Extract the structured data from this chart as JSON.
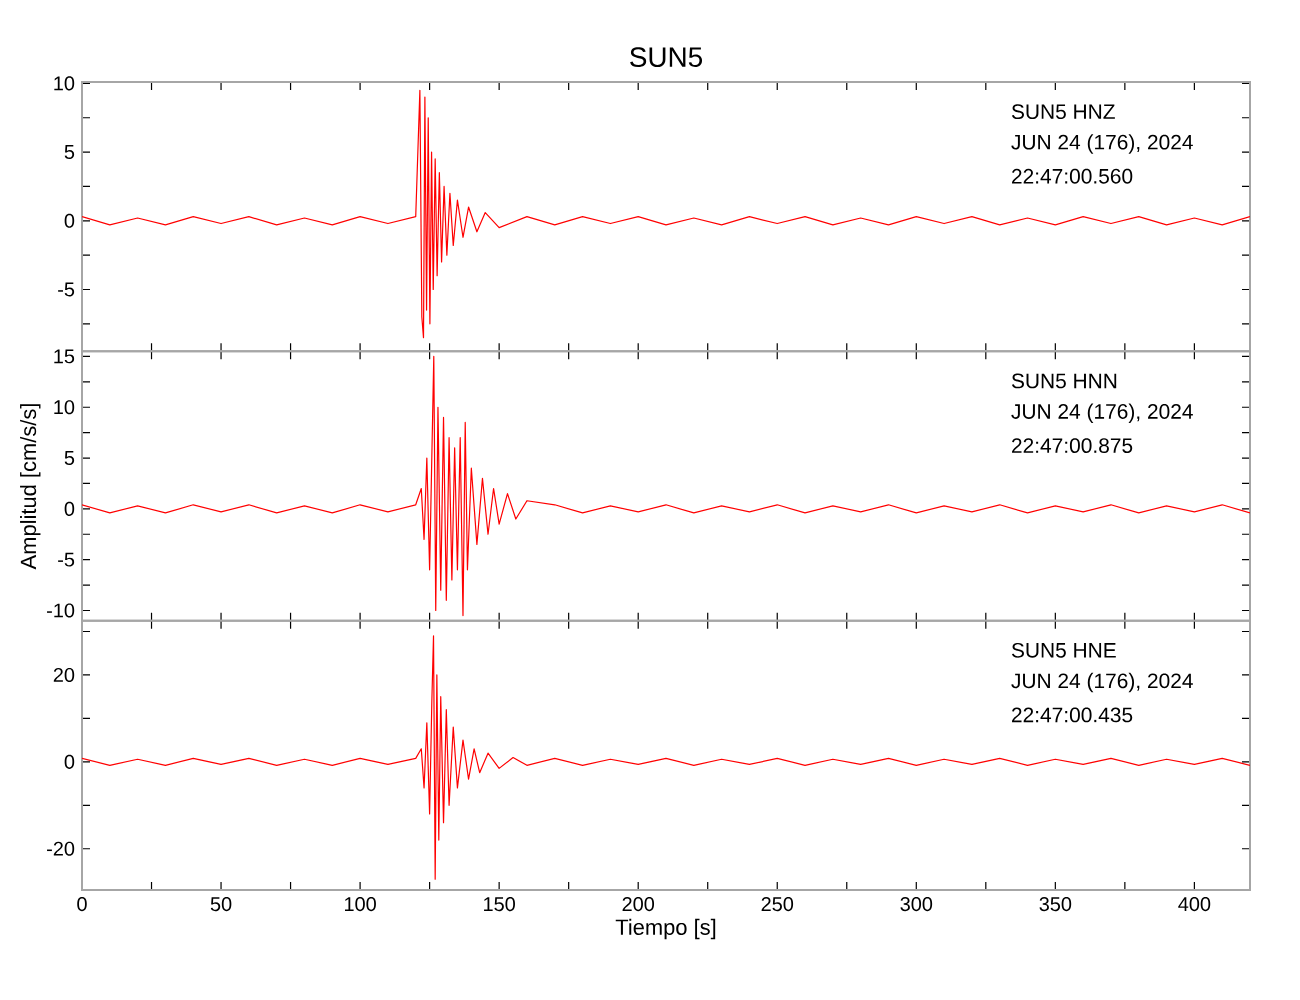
{
  "chart_data": [
    {
      "type": "line",
      "title": "SUN5",
      "annotations": [
        "SUN5   HNZ",
        "JUN 24 (176), 2024",
        "22:47:00.560"
      ],
      "xlim": [
        0,
        420
      ],
      "ylim": [
        -9.5,
        10.1
      ],
      "line_style": "solid",
      "tick_labels": "y",
      "xticks": [
        0,
        {
          "value": 25,
          "label": null
        },
        50,
        {
          "value": 75,
          "label": null
        },
        100,
        {
          "value": 125,
          "label": null
        },
        150,
        {
          "value": 175,
          "label": null
        },
        200,
        {
          "value": 225,
          "label": null
        },
        250,
        {
          "value": 275,
          "label": null
        },
        300,
        {
          "value": 325,
          "label": null
        },
        350,
        {
          "value": 375,
          "label": null
        },
        400
      ],
      "yticks": [
        {
          "value": -7.5,
          "label": null
        },
        -5,
        {
          "value": -2.5,
          "label": null
        },
        0,
        {
          "value": 2.5,
          "label": null
        },
        5,
        {
          "value": 7.5,
          "label": null
        },
        10
      ],
      "series": [
        {
          "color": "#ff0000",
          "x": [
            0,
            10,
            20,
            30,
            40,
            50,
            60,
            70,
            80,
            90,
            100,
            110,
            120,
            121.5,
            122.2,
            122.8,
            123.3,
            123.9,
            124.5,
            125.1,
            125.7,
            126.3,
            127,
            127.7,
            128.5,
            129.3,
            130.2,
            131.2,
            132.3,
            133.5,
            135,
            137,
            139,
            142,
            145,
            150,
            160,
            170,
            180,
            190,
            200,
            210,
            220,
            230,
            240,
            250,
            260,
            270,
            280,
            290,
            300,
            310,
            320,
            330,
            340,
            350,
            360,
            370,
            380,
            390,
            400,
            410,
            420
          ],
          "values": [
            0.3,
            -0.3,
            0.2,
            -0.3,
            0.3,
            -0.2,
            0.3,
            -0.3,
            0.2,
            -0.3,
            0.3,
            -0.2,
            0.3,
            9.5,
            -7,
            -8.5,
            9,
            -6.5,
            7.5,
            -7.5,
            5,
            -5,
            4.5,
            -4,
            3.5,
            -3,
            2.5,
            -2.5,
            2,
            -1.8,
            1.5,
            -1.2,
            1,
            -0.8,
            0.6,
            -0.5,
            0.3,
            -0.3,
            0.3,
            -0.2,
            0.3,
            -0.3,
            0.2,
            -0.3,
            0.3,
            -0.2,
            0.3,
            -0.3,
            0.2,
            -0.3,
            0.3,
            -0.2,
            0.3,
            -0.3,
            0.2,
            -0.3,
            0.3,
            -0.2,
            0.3,
            -0.3,
            0.2,
            -0.3,
            0.3
          ]
        }
      ]
    },
    {
      "type": "line",
      "ylabel": "Amplitud [cm/s/s]",
      "annotations": [
        "SUN5   HNN",
        "JUN 24 (176), 2024",
        "22:47:00.875"
      ],
      "xlim": [
        0,
        420
      ],
      "ylim": [
        -11,
        15.5
      ],
      "line_style": "solid",
      "tick_labels": "y",
      "xticks": [
        0,
        {
          "value": 25,
          "label": null
        },
        50,
        {
          "value": 75,
          "label": null
        },
        100,
        {
          "value": 125,
          "label": null
        },
        150,
        {
          "value": 175,
          "label": null
        },
        200,
        {
          "value": 225,
          "label": null
        },
        250,
        {
          "value": 275,
          "label": null
        },
        300,
        {
          "value": 325,
          "label": null
        },
        350,
        {
          "value": 375,
          "label": null
        },
        400
      ],
      "yticks": [
        -10,
        {
          "value": -7.5,
          "label": null
        },
        -5,
        {
          "value": -2.5,
          "label": null
        },
        0,
        {
          "value": 2.5,
          "label": null
        },
        5,
        {
          "value": 7.5,
          "label": null
        },
        10,
        {
          "value": 12.5,
          "label": null
        },
        15
      ],
      "series": [
        {
          "color": "#ff0000",
          "x": [
            0,
            10,
            20,
            30,
            40,
            50,
            60,
            70,
            80,
            90,
            100,
            110,
            120,
            122,
            123,
            124,
            125,
            126,
            126.5,
            127.2,
            128,
            129,
            130,
            131,
            132,
            133,
            134,
            135,
            136,
            137,
            137.8,
            138.6,
            140,
            142,
            144,
            146,
            148,
            150,
            153,
            156,
            160,
            170,
            180,
            190,
            200,
            210,
            220,
            230,
            240,
            250,
            260,
            270,
            280,
            290,
            300,
            310,
            320,
            330,
            340,
            350,
            360,
            370,
            380,
            390,
            400,
            410,
            420
          ],
          "values": [
            0.4,
            -0.4,
            0.3,
            -0.4,
            0.4,
            -0.3,
            0.4,
            -0.4,
            0.3,
            -0.4,
            0.4,
            -0.3,
            0.4,
            2,
            -3,
            5,
            -6,
            8,
            15,
            -10,
            10,
            -8,
            9,
            -9,
            7,
            -7,
            6,
            -6,
            7,
            -10.5,
            8.5,
            -6,
            4,
            -3.5,
            3,
            -2.5,
            2,
            -1.5,
            1.5,
            -1,
            0.8,
            0.4,
            -0.4,
            0.3,
            -0.3,
            0.4,
            -0.4,
            0.3,
            -0.3,
            0.4,
            -0.4,
            0.3,
            -0.3,
            0.4,
            -0.4,
            0.3,
            -0.3,
            0.4,
            -0.4,
            0.3,
            -0.3,
            0.4,
            -0.4,
            0.3,
            -0.3,
            0.4,
            -0.4
          ]
        }
      ]
    },
    {
      "type": "line",
      "xlabel": "Tiempo [s]",
      "annotations": [
        "SUN5   HNE",
        "JUN 24 (176), 2024",
        "22:47:00.435"
      ],
      "xlim": [
        0,
        420
      ],
      "ylim": [
        -29.5,
        32.5
      ],
      "line_style": "solid",
      "xticks": [
        0,
        {
          "value": 25,
          "label": null
        },
        50,
        {
          "value": 75,
          "label": null
        },
        100,
        {
          "value": 125,
          "label": null
        },
        150,
        {
          "value": 175,
          "label": null
        },
        200,
        {
          "value": 225,
          "label": null
        },
        250,
        {
          "value": 275,
          "label": null
        },
        300,
        {
          "value": 325,
          "label": null
        },
        350,
        {
          "value": 375,
          "label": null
        },
        400
      ],
      "yticks": [
        -20,
        {
          "value": -10,
          "label": null
        },
        0,
        {
          "value": 10,
          "label": null
        },
        20,
        {
          "value": 30,
          "label": null
        }
      ],
      "series": [
        {
          "color": "#ff0000",
          "x": [
            0,
            10,
            20,
            30,
            40,
            50,
            60,
            70,
            80,
            90,
            100,
            110,
            120,
            122,
            123,
            124,
            125,
            125.8,
            126.4,
            127,
            127.6,
            128.3,
            129,
            130,
            131,
            132,
            133.5,
            135,
            137,
            139,
            141,
            143,
            146,
            150,
            155,
            160,
            170,
            180,
            190,
            200,
            210,
            220,
            230,
            240,
            250,
            260,
            270,
            280,
            290,
            300,
            310,
            320,
            330,
            340,
            350,
            360,
            370,
            380,
            390,
            400,
            410,
            420
          ],
          "values": [
            0.8,
            -0.8,
            0.6,
            -0.8,
            0.8,
            -0.6,
            0.8,
            -0.8,
            0.6,
            -0.8,
            0.8,
            -0.6,
            0.8,
            3,
            -6,
            9,
            -12,
            14,
            29,
            -27,
            20,
            -18,
            15,
            -14,
            12,
            -10,
            8,
            -6,
            5,
            -4,
            3,
            -2.5,
            2,
            -1.5,
            1,
            -0.8,
            0.8,
            -0.8,
            0.6,
            -0.6,
            0.8,
            -0.8,
            0.6,
            -0.6,
            0.8,
            -0.8,
            0.6,
            -0.6,
            0.8,
            -0.8,
            0.6,
            -0.6,
            0.8,
            -0.8,
            0.6,
            -0.6,
            0.8,
            -0.8,
            0.6,
            -0.6,
            0.8,
            -0.8
          ]
        }
      ]
    }
  ]
}
